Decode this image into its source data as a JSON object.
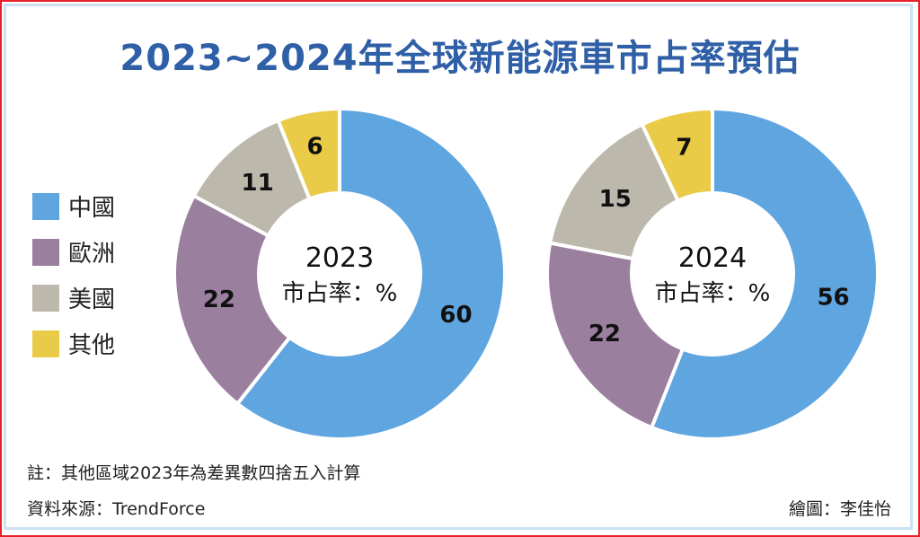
{
  "chart_data": [
    {
      "type": "pie",
      "subtype": "donut",
      "title": "2023",
      "center_label": "市占率：%",
      "categories": [
        "中國",
        "歐洲",
        "美國",
        "其他"
      ],
      "values": [
        60,
        22,
        11,
        6
      ]
    },
    {
      "type": "pie",
      "subtype": "donut",
      "title": "2024",
      "center_label": "市占率：%",
      "categories": [
        "中國",
        "歐洲",
        "美國",
        "其他"
      ],
      "values": [
        56,
        22,
        15,
        7
      ]
    }
  ],
  "title": "2023~2024年全球新能源車市占率預估",
  "legend": [
    {
      "label": "中國",
      "color": "#5fa5e0"
    },
    {
      "label": "歐洲",
      "color": "#9a7f9f"
    },
    {
      "label": "美國",
      "color": "#bdb8ac"
    },
    {
      "label": "其他",
      "color": "#eacb47"
    }
  ],
  "note": "註：其他區域2023年為差異數四捨五入計算",
  "source": "資料來源：TrendForce",
  "credit": "繪圖：李佳怡"
}
